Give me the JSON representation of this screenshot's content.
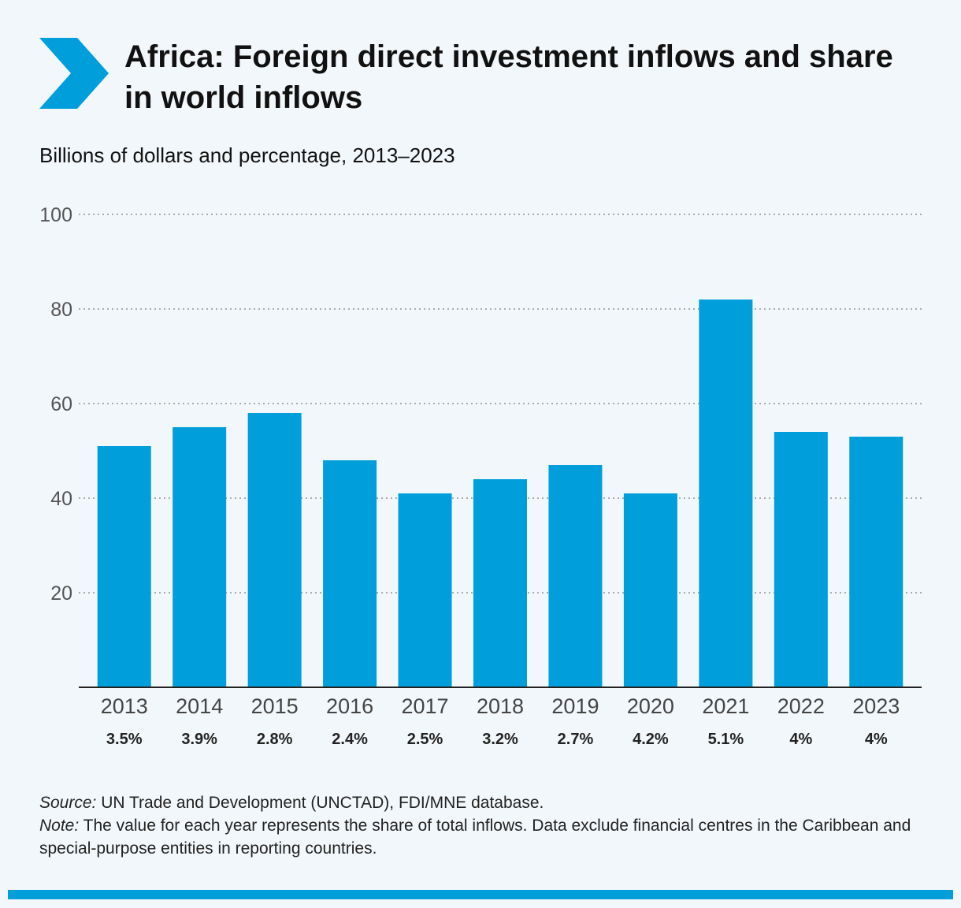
{
  "header": {
    "title": "Africa: Foreign direct investment inflows and share in world inflows",
    "subtitle": "Billions of dollars and percentage, 2013–2023",
    "logo_icon": "chevron-right-icon"
  },
  "colors": {
    "bar": "#009edb",
    "accent": "#009edb",
    "grid": "#aaaaaa",
    "axis": "#222222",
    "tick_text": "#555555"
  },
  "chart_data": {
    "type": "bar",
    "title": "Africa: Foreign direct investment inflows and share in world inflows",
    "subtitle": "Billions of dollars and percentage, 2013–2023",
    "categories": [
      "2013",
      "2014",
      "2015",
      "2016",
      "2017",
      "2018",
      "2019",
      "2020",
      "2021",
      "2022",
      "2023"
    ],
    "values": [
      51,
      55,
      58,
      48,
      41,
      44,
      47,
      41,
      82,
      54,
      53
    ],
    "share_labels": [
      "3.5%",
      "3.9%",
      "2.8%",
      "2.4%",
      "2.5%",
      "3.2%",
      "2.7%",
      "4.2%",
      "5.1%",
      "4%",
      "4%"
    ],
    "ylim": [
      0,
      100
    ],
    "yticks": [
      20,
      40,
      60,
      80,
      100
    ],
    "grid": true,
    "legend": "none"
  },
  "notes": {
    "source_label": "Source:",
    "source_text": " UN Trade and Development (UNCTAD), FDI/MNE database.",
    "note_label": "Note:",
    "note_text": " The value for each year represents the share of total inflows. Data exclude financial centres in the Caribbean and special-purpose entities in reporting countries."
  }
}
